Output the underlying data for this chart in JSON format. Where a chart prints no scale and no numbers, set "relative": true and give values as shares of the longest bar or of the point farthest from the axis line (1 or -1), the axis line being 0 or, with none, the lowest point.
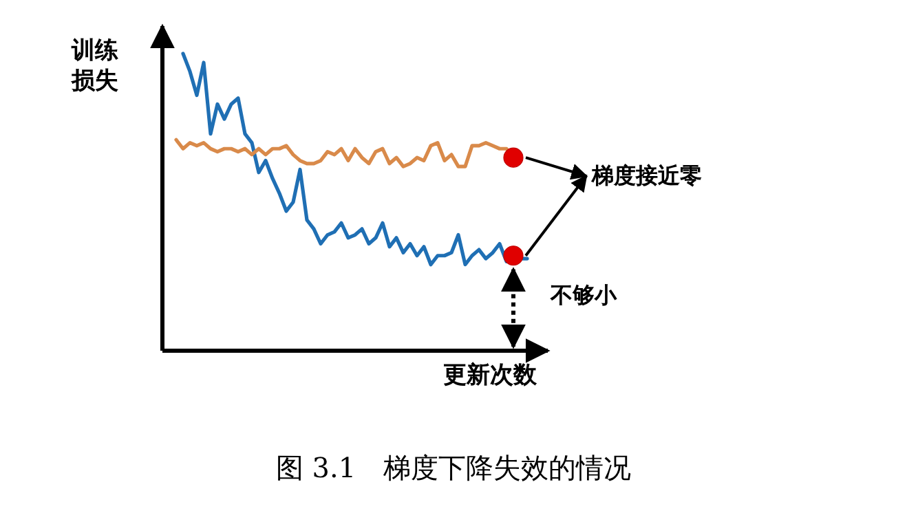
{
  "chart_data": {
    "type": "line",
    "relative": true,
    "ylabel": "训练损失",
    "xlabel": "更新次数",
    "categories": [
      null,
      null,
      null,
      null,
      null,
      null,
      null,
      null,
      null,
      null,
      null,
      null,
      null,
      null,
      null,
      null,
      null,
      null,
      null,
      null,
      null,
      null,
      null,
      null,
      null,
      null,
      null,
      null,
      null,
      null,
      null,
      null,
      null,
      null,
      null,
      null,
      null,
      null,
      null,
      null,
      null,
      null,
      null,
      null,
      null,
      null,
      null,
      null,
      null,
      null,
      null,
      null,
      null,
      null,
      null
    ],
    "series": [
      {
        "color": "#1f6fb4",
        "values": [
          null,
          null,
          null,
          1.0,
          0.94,
          0.86,
          0.97,
          0.73,
          0.83,
          0.78,
          0.83,
          0.85,
          0.73,
          0.7,
          0.6,
          0.64,
          0.58,
          0.53,
          0.47,
          0.5,
          0.61,
          0.44,
          0.41,
          0.36,
          0.39,
          0.4,
          0.43,
          0.38,
          0.39,
          0.41,
          0.36,
          0.38,
          0.43,
          0.35,
          0.38,
          0.33,
          0.36,
          0.32,
          0.35,
          0.29,
          0.32,
          0.32,
          0.33,
          0.39,
          0.29,
          0.32,
          0.34,
          0.31,
          0.33,
          0.36,
          0.3,
          0.32,
          0.31,
          0.31,
          null
        ]
      },
      {
        "color": "#d98a4a",
        "values": [
          null,
          null,
          0.71,
          0.68,
          0.7,
          0.69,
          0.7,
          0.68,
          0.67,
          0.68,
          0.68,
          0.67,
          0.68,
          0.66,
          0.68,
          0.66,
          0.68,
          0.68,
          0.69,
          0.66,
          0.64,
          0.63,
          0.63,
          0.64,
          0.67,
          0.66,
          0.68,
          0.64,
          0.68,
          0.65,
          0.63,
          0.67,
          0.68,
          0.63,
          0.65,
          0.62,
          0.63,
          0.65,
          0.64,
          0.69,
          0.7,
          0.64,
          0.66,
          0.62,
          0.62,
          0.69,
          0.69,
          0.7,
          0.69,
          0.68,
          0.68,
          0.65,
          null,
          null,
          null
        ]
      }
    ],
    "annotations": [
      "梯度接近零",
      "不够小",
      "图 3.1　梯度下降失效的情况"
    ]
  }
}
